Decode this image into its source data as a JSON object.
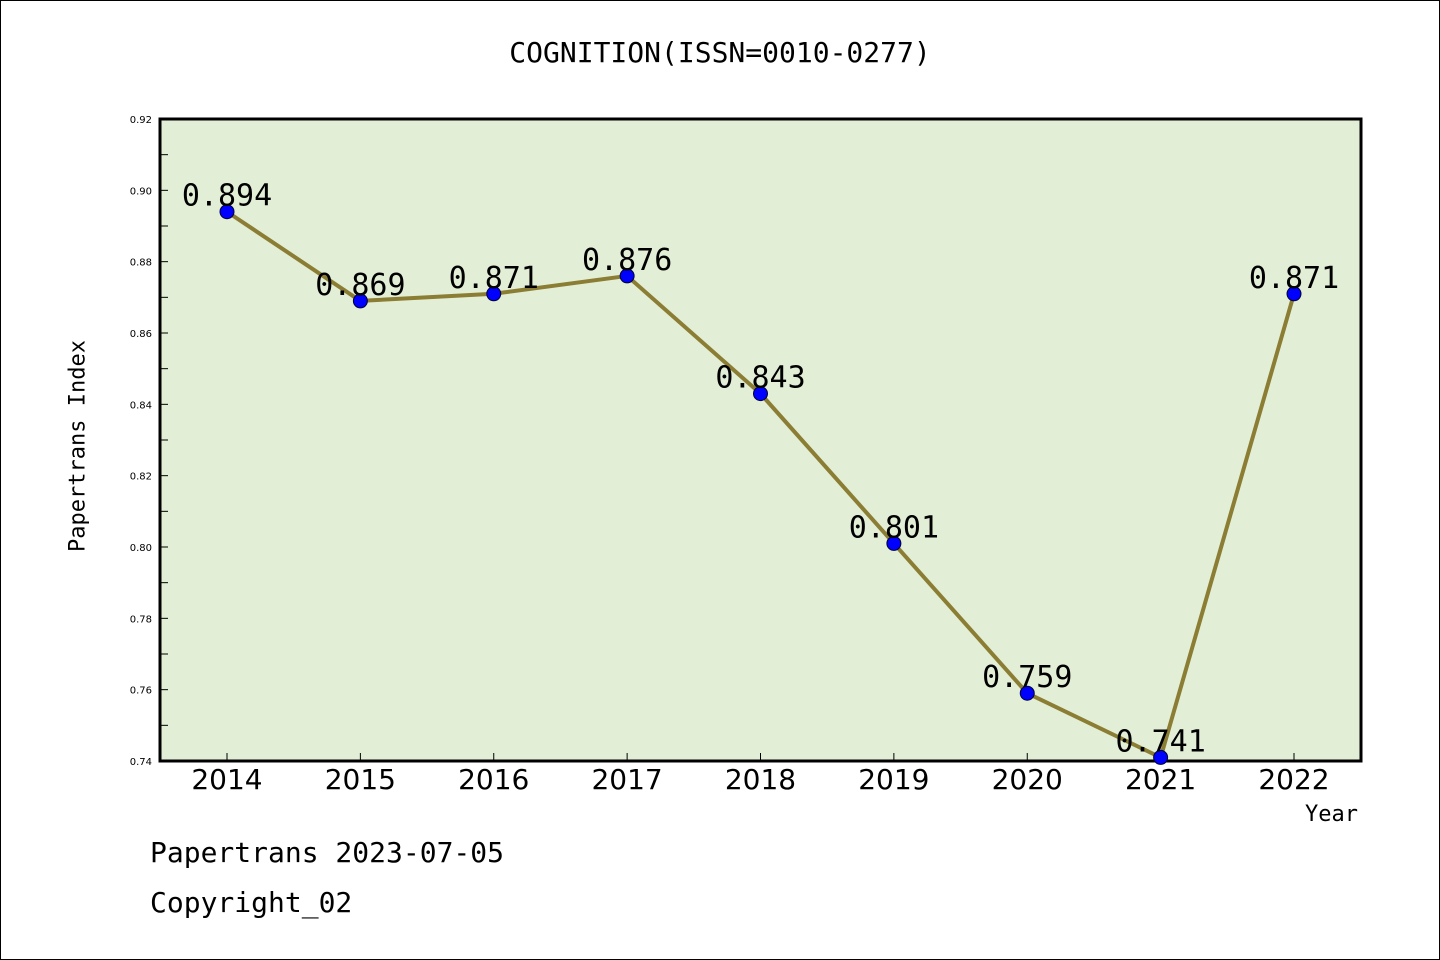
{
  "chart_data": {
    "type": "line",
    "title": "COGNITION(ISSN=0010-0277)",
    "xlabel": "Year",
    "ylabel": "Papertrans Index",
    "categories": [
      "2014",
      "2015",
      "2016",
      "2017",
      "2018",
      "2019",
      "2020",
      "2021",
      "2022"
    ],
    "series": [
      {
        "values": [
          0.894,
          0.869,
          0.871,
          0.876,
          0.843,
          0.801,
          0.759,
          0.741,
          0.871
        ],
        "data_labels": [
          "0.894",
          "0.869",
          "0.871",
          "0.876",
          "0.843",
          "0.801",
          "0.759",
          "0.741",
          "0.871"
        ]
      }
    ],
    "ylim": [
      0.74,
      0.92
    ],
    "yticks": [
      "0.74",
      "0.76",
      "0.78",
      "0.80",
      "0.82",
      "0.84",
      "0.86",
      "0.88",
      "0.90",
      "0.92"
    ],
    "grid": false,
    "colors": {
      "line": "#8B7D33",
      "marker": "#0000FF",
      "plot_bg": "#E2EFD6"
    }
  },
  "footer": {
    "line1": "Papertrans 2023-07-05",
    "line2": "Copyright_02"
  }
}
